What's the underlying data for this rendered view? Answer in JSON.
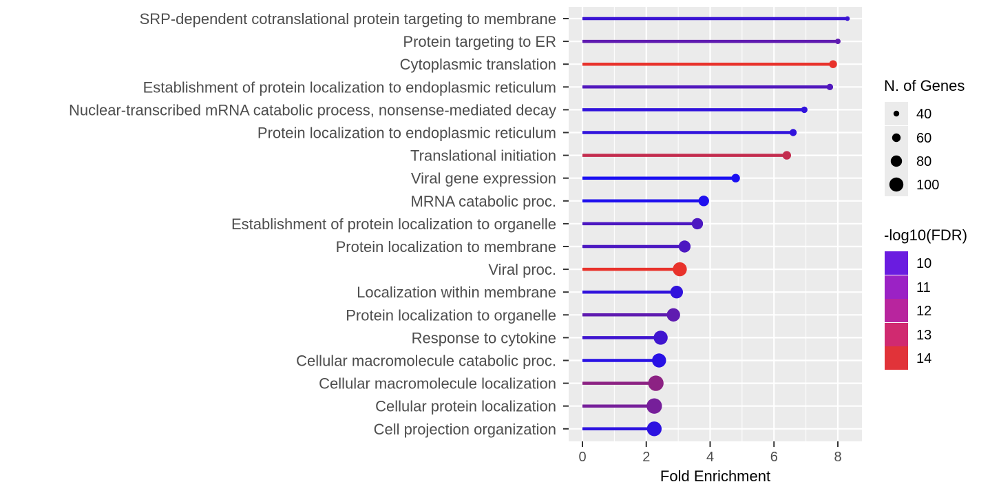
{
  "chart_data": {
    "type": "lollipop",
    "xlabel": "Fold Enrichment",
    "xlim": [
      -0.2,
      8.8
    ],
    "xticks": [
      0,
      2,
      4,
      6,
      8
    ],
    "grid": true,
    "legend_position": "right",
    "categories": [
      "SRP-dependent cotranslational protein targeting to membrane",
      "Protein targeting to ER",
      "Cytoplasmic translation",
      "Establishment of protein localization to endoplasmic reticulum",
      "Nuclear-transcribed mRNA catabolic process, nonsense-mediated decay",
      "Protein localization to endoplasmic reticulum",
      "Translational initiation",
      "Viral gene expression",
      "MRNA catabolic proc.",
      "Establishment of protein localization to organelle",
      "Protein localization to membrane",
      "Viral proc.",
      "Localization within membrane",
      "Protein localization to organelle",
      "Response to cytokine",
      "Cellular macromolecule catabolic proc.",
      "Cellular macromolecule localization",
      "Cellular protein localization",
      "Cell projection organization"
    ],
    "fold_enrichment": [
      8.3,
      8.0,
      7.85,
      7.75,
      6.95,
      6.6,
      6.4,
      4.8,
      3.8,
      3.6,
      3.2,
      3.05,
      2.95,
      2.85,
      2.45,
      2.4,
      2.3,
      2.25,
      2.25
    ],
    "n_genes": [
      32,
      38,
      55,
      45,
      45,
      50,
      60,
      60,
      75,
      80,
      85,
      100,
      90,
      95,
      100,
      100,
      110,
      110,
      105
    ],
    "neg_log10_fdr": [
      10.2,
      11.0,
      14.0,
      10.7,
      10.0,
      10.0,
      13.2,
      9.5,
      9.6,
      10.6,
      10.6,
      14.0,
      10.0,
      11.0,
      10.3,
      9.8,
      12.0,
      11.5,
      9.9
    ],
    "size_legend": {
      "title": "N. of Genes",
      "labels": [
        "40",
        "60",
        "80",
        "100"
      ],
      "values": [
        40,
        60,
        80,
        100
      ]
    },
    "color_legend": {
      "title": "-log10(FDR)",
      "labels": [
        "10",
        "11",
        "12",
        "13",
        "14"
      ],
      "values": [
        10,
        11,
        12,
        13,
        14
      ],
      "colors": [
        "#6a1ce0",
        "#9b22c5",
        "#b8259e",
        "#d02a70",
        "#e13339"
      ]
    },
    "color_scale": {
      "low_value": 9.5,
      "low_color": "#1a0ff2",
      "high_value": 14,
      "high_color": "#e8322b"
    }
  }
}
